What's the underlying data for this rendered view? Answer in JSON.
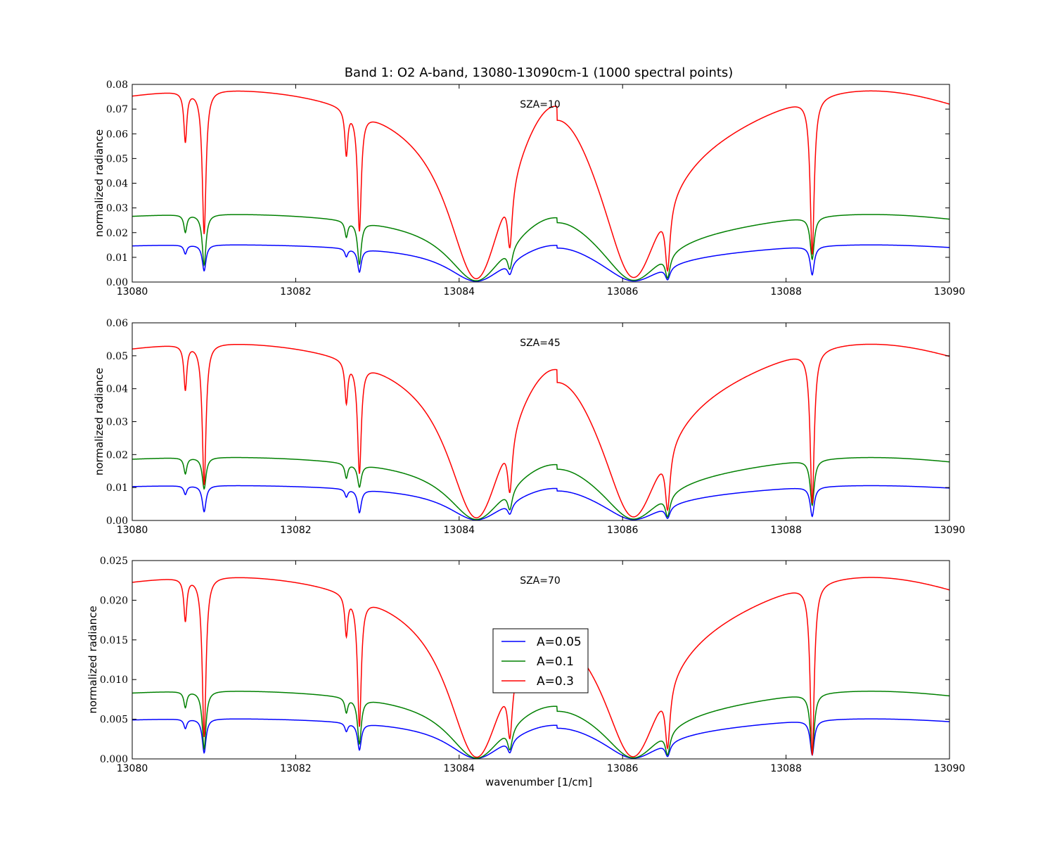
{
  "figure": {
    "title": "Band 1: O2 A-band, 13080-13090cm-1 (1000 spectral points)",
    "xlabel": "wavenumber [1/cm]"
  },
  "series_colors": {
    "A=0.05": "#0000ff",
    "A=0.1": "#008000",
    "A=0.3": "#ff0000"
  },
  "legend": {
    "placement": "center of bottom panel",
    "entries": [
      {
        "label": "A=0.05",
        "color": "#0000ff"
      },
      {
        "label": "A=0.1",
        "color": "#008000"
      },
      {
        "label": "A=0.3",
        "color": "#ff0000"
      }
    ]
  },
  "chart_data": [
    {
      "type": "line",
      "annotation": "SZA=10",
      "ylabel": "normalized radiance",
      "xlim": [
        13080,
        13090
      ],
      "ylim": [
        0,
        0.08
      ],
      "xticks": [
        "13080",
        "13082",
        "13084",
        "13086",
        "13088",
        "13090"
      ],
      "yticks": [
        "0.00",
        "0.01",
        "0.02",
        "0.03",
        "0.04",
        "0.05",
        "0.06",
        "0.07",
        "0.08"
      ],
      "series": [
        {
          "name": "A=0.05",
          "color": "#0000ff",
          "peak": 0.0155,
          "center": 0.0067,
          "dips": [
            0.7,
            0.3,
            0.7,
            0.3,
            0.2
          ]
        },
        {
          "name": "A=0.1",
          "color": "#008000",
          "peak": 0.0282,
          "center": 0.0112,
          "dips": [
            0.8,
            0.25,
            0.8,
            0.3,
            0.35
          ]
        },
        {
          "name": "A=0.3",
          "color": "#ff0000",
          "peak": 0.0798,
          "center": 0.0292,
          "dips": [
            0.82,
            0.25,
            0.82,
            0.3,
            0.15
          ]
        }
      ]
    },
    {
      "type": "line",
      "annotation": "SZA=45",
      "ylabel": "normalized radiance",
      "xlim": [
        13080,
        13090
      ],
      "ylim": [
        0,
        0.06
      ],
      "xticks": [
        "13080",
        "13082",
        "13084",
        "13086",
        "13088",
        "13090"
      ],
      "yticks": [
        "0.00",
        "0.01",
        "0.02",
        "0.03",
        "0.04",
        "0.05",
        "0.06"
      ],
      "series": [
        {
          "name": "A=0.05",
          "color": "#0000ff",
          "peak": 0.0109,
          "center": 0.004,
          "dips": [
            0.75,
            0.25,
            0.75,
            0.25,
            0.12
          ]
        },
        {
          "name": "A=0.1",
          "color": "#008000",
          "peak": 0.0197,
          "center": 0.0066,
          "dips": [
            0.78,
            0.5,
            0.78,
            0.6,
            0.25
          ]
        },
        {
          "name": "A=0.3",
          "color": "#ff0000",
          "peak": 0.0552,
          "center": 0.0168,
          "dips": [
            0.78,
            0.2,
            0.8,
            0.3,
            0.1
          ]
        }
      ]
    },
    {
      "type": "line",
      "annotation": "SZA=70",
      "ylabel": "normalized radiance",
      "xlim": [
        13080,
        13090
      ],
      "ylim": [
        0,
        0.025
      ],
      "xticks": [
        "13080",
        "13082",
        "13084",
        "13086",
        "13088",
        "13090"
      ],
      "yticks": [
        "0.000",
        "0.005",
        "0.010",
        "0.015",
        "0.020",
        "0.025"
      ],
      "series": [
        {
          "name": "A=0.05",
          "color": "#0000ff",
          "peak": 0.0052,
          "center": 0.0015,
          "dips": [
            0.68,
            0.15,
            0.68,
            0.25,
            0.1
          ]
        },
        {
          "name": "A=0.1",
          "color": "#008000",
          "peak": 0.0088,
          "center": 0.002,
          "dips": [
            0.68,
            0.15,
            0.7,
            0.25,
            0.07
          ]
        },
        {
          "name": "A=0.3",
          "color": "#ff0000",
          "peak": 0.0236,
          "center": 0.0039,
          "dips": [
            0.68,
            0.12,
            0.72,
            0.2,
            0.02
          ]
        }
      ]
    }
  ]
}
